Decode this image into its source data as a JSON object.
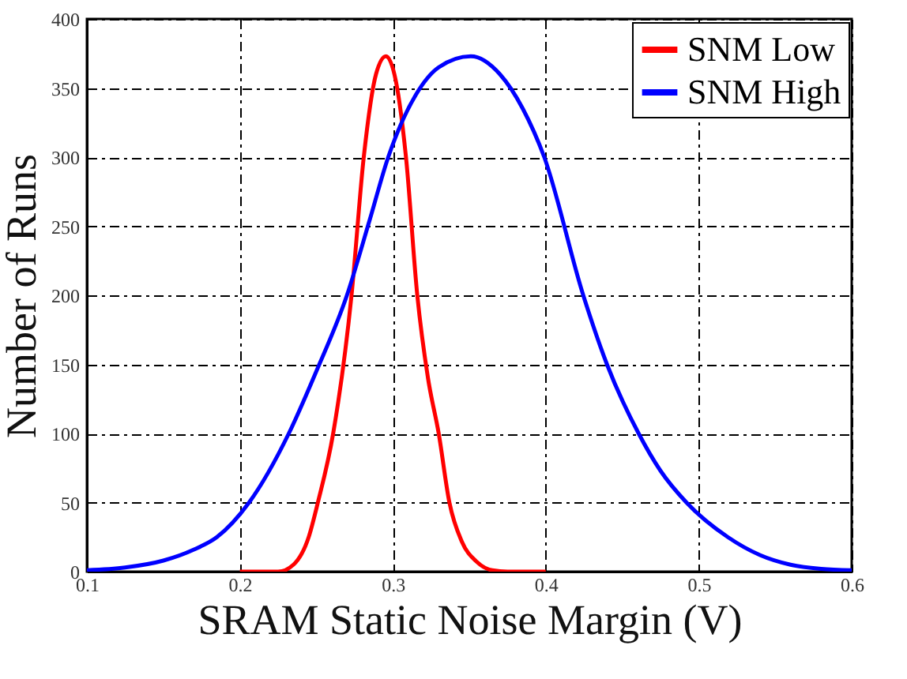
{
  "chart_data": {
    "type": "line",
    "xlabel": "SRAM Static Noise Margin (V)",
    "ylabel": "Number of Runs",
    "xlim": [
      0.1,
      0.6
    ],
    "xticks": [
      0.1,
      0.2,
      0.3,
      0.4,
      0.5,
      0.6
    ],
    "ylim": [
      0,
      400
    ],
    "yticks": [
      0,
      50,
      100,
      150,
      200,
      250,
      300,
      350,
      400
    ],
    "grid": true,
    "legend": "top right",
    "line_style": "solid",
    "series": [
      {
        "name": "SNM Low",
        "color": "#ff0000",
        "x": [
          0.2,
          0.225,
          0.235,
          0.245,
          0.251,
          0.261,
          0.273,
          0.281,
          0.289,
          0.2955,
          0.302,
          0.3086,
          0.316,
          0.323,
          0.33,
          0.337,
          0.345,
          0.355,
          0.365,
          0.375,
          0.4
        ],
        "values": [
          0,
          0,
          5,
          25,
          50,
          100,
          200,
          300,
          360,
          373,
          355,
          300,
          200,
          140,
          100,
          50,
          22,
          7,
          1,
          0,
          0
        ]
      },
      {
        "name": "SNM High",
        "color": "#0000ff",
        "x": [
          0.1,
          0.125,
          0.15,
          0.17,
          0.185,
          0.206,
          0.232,
          0.25,
          0.27,
          0.285,
          0.297,
          0.315,
          0.33,
          0.351,
          0.37,
          0.385,
          0.399,
          0.4245,
          0.44,
          0.4607,
          0.475,
          0.492,
          0.519,
          0.54,
          0.56,
          0.58,
          0.6
        ],
        "values": [
          1,
          3,
          8,
          16,
          25,
          50,
          100,
          145,
          200,
          255,
          300,
          345,
          365,
          373,
          360,
          335,
          300,
          200,
          150,
          100,
          73,
          50,
          25,
          12,
          5,
          2,
          1
        ]
      }
    ]
  }
}
